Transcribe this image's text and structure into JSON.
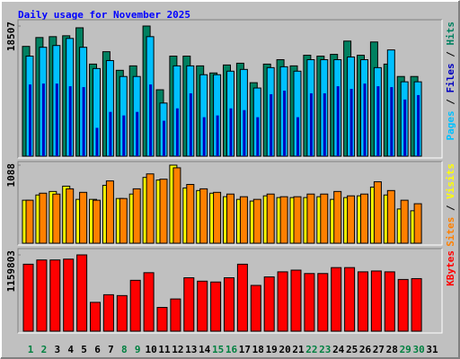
{
  "chart_data": [
    {
      "type": "bar",
      "title": "Daily usage for November 2025",
      "ylim": [
        0,
        18507
      ],
      "yticks": [
        18507
      ],
      "legend_separator": " / ",
      "series": [
        {
          "name": "Pages",
          "color": "#00C0FF",
          "values": [
            14226,
            15485,
            15737,
            16744,
            15485,
            12464,
            13597,
            11331,
            11331,
            16996,
            7554,
            12842,
            12842,
            11583,
            11583,
            12086,
            12338,
            9694,
            12590,
            12716,
            12086,
            13723,
            13723,
            13723,
            14100,
            13723,
            12590,
            15107,
            10575,
            10575,
            null
          ]
        },
        {
          "name": "Files",
          "color": "#0000C0",
          "values": [
            10198,
            10324,
            10324,
            9946,
            9820,
            4029,
            6295,
            5791,
            6295,
            10198,
            5036,
            6798,
            8939,
            5540,
            5791,
            6798,
            6547,
            5540,
            8813,
            9316,
            5540,
            8939,
            8939,
            9946,
            9568,
            10324,
            9946,
            9820,
            8057,
            8687,
            null
          ]
        },
        {
          "name": "Hits",
          "color": "#008060",
          "values": [
            15611,
            16870,
            16996,
            17122,
            18255,
            13093,
            14856,
            12212,
            12842,
            18507,
            9442,
            14226,
            14226,
            12842,
            11834,
            12968,
            13219,
            10449,
            13093,
            13723,
            12842,
            14352,
            14226,
            14478,
            16366,
            14352,
            16240,
            13093,
            11331,
            11331,
            null
          ]
        }
      ]
    },
    {
      "type": "bar",
      "ylim": [
        0,
        1088
      ],
      "yticks": [
        1088
      ],
      "legend_separator": " / ",
      "series": [
        {
          "name": "Sites",
          "color": "#FF8000",
          "values": [
            599,
            697,
            685,
            758,
            709,
            599,
            868,
            623,
            758,
            966,
            892,
            1051,
            819,
            758,
            709,
            685,
            648,
            611,
            685,
            648,
            648,
            685,
            685,
            721,
            660,
            685,
            856,
            734,
            599,
            550,
            null
          ]
        },
        {
          "name": "Visits",
          "color": "#FFFF00",
          "values": [
            599,
            672,
            721,
            795,
            611,
            611,
            807,
            623,
            685,
            917,
            880,
            1088,
            770,
            734,
            697,
            648,
            611,
            587,
            660,
            636,
            636,
            636,
            648,
            611,
            636,
            660,
            782,
            672,
            477,
            452,
            null
          ]
        }
      ]
    },
    {
      "type": "bar",
      "ylim": [
        0,
        1159803
      ],
      "yticks": [
        1159803
      ],
      "categories": [
        "1",
        "2",
        "3",
        "4",
        "5",
        "6",
        "7",
        "8",
        "9",
        "10",
        "11",
        "12",
        "13",
        "14",
        "15",
        "16",
        "17",
        "18",
        "19",
        "20",
        "21",
        "22",
        "23",
        "24",
        "25",
        "26",
        "27",
        "28",
        "29",
        "30",
        "31"
      ],
      "category_colors": [
        "#008040",
        "#008040",
        "#000000",
        "#000000",
        "#000000",
        "#000000",
        "#000000",
        "#008040",
        "#008040",
        "#000000",
        "#000000",
        "#000000",
        "#000000",
        "#000000",
        "#008040",
        "#008040",
        "#000000",
        "#000000",
        "#000000",
        "#000000",
        "#000000",
        "#008040",
        "#008040",
        "#000000",
        "#000000",
        "#000000",
        "#000000",
        "#000000",
        "#008040",
        "#008040",
        "#000000"
      ],
      "series": [
        {
          "name": "KBytes",
          "color": "#FF0000",
          "values": [
            1018073,
            1082508,
            1082508,
            1095395,
            1159803,
            438158,
            554141,
            541254,
            773220,
            889203,
            360836,
            489706,
            811881,
            760333,
            747446,
            811881,
            1018073,
            695898,
            824768,
            902090,
            927864,
            876316,
            876316,
            966525,
            966525,
            902090,
            914977,
            902090,
            786107,
            799000,
            null
          ]
        }
      ]
    }
  ]
}
